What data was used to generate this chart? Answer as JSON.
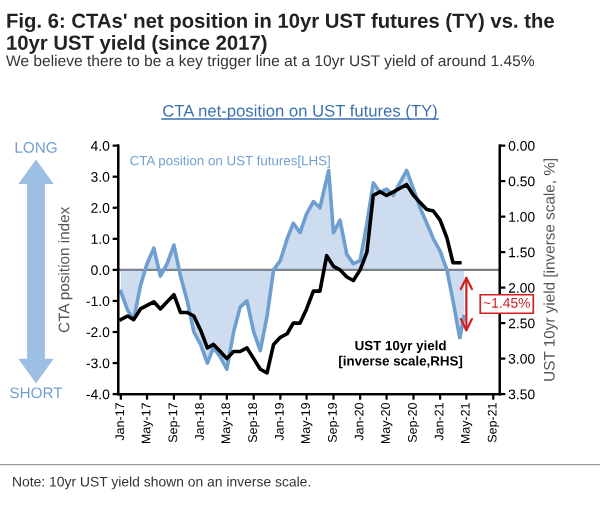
{
  "chart_data": {
    "type": "line",
    "title": "Fig. 6: CTAs' net position in 10yr UST futures (TY) vs. the 10yr UST yield (since 2017)",
    "subtitle": "We believe there to be a key trigger line at a 10yr UST yield of around 1.45%",
    "ylabel": "CTA position index",
    "y2label": "UST 10yr yield [inverse scale, %]",
    "annotations": [
      "CTA net-position on UST futures (TY)",
      "LONG",
      "SHORT",
      "Note: 10yr UST yield shown on an inverse scale.",
      {
        "text": "~1.45%",
        "x": "2021-05-01",
        "y": -2.2
      }
    ],
    "series": [
      {
        "name": "CTA position on UST futures[LHS]",
        "type": "area",
        "color": "#6f9fd0",
        "x": [
          "2017-01",
          "2017-02",
          "2017-03",
          "2017-04",
          "2017-05",
          "2017-06",
          "2017-07",
          "2017-08",
          "2017-09",
          "2017-10",
          "2017-11",
          "2017-12",
          "2018-01",
          "2018-02",
          "2018-03",
          "2018-04",
          "2018-05",
          "2018-06",
          "2018-07",
          "2018-08",
          "2018-09",
          "2018-10",
          "2018-11",
          "2018-12",
          "2019-01",
          "2019-02",
          "2019-03",
          "2019-04",
          "2019-05",
          "2019-06",
          "2019-07",
          "2019-08-10",
          "2019-09",
          "2019-10",
          "2019-11",
          "2019-12",
          "2020-01",
          "2020-02",
          "2020-03",
          "2020-04",
          "2020-05",
          "2020-06",
          "2020-07",
          "2020-08",
          "2020-09",
          "2020-10",
          "2020-11",
          "2020-12",
          "2021-01",
          "2021-02",
          "2021-03",
          "2021-04",
          "2021-04-20"
        ],
        "values": [
          -0.7,
          -1.3,
          -1.6,
          -0.5,
          0.2,
          0.7,
          -0.2,
          0.2,
          0.8,
          -0.2,
          -1.0,
          -2.0,
          -2.4,
          -3.0,
          -2.5,
          -2.8,
          -3.2,
          -2.0,
          -1.2,
          -1.0,
          -2.0,
          -2.6,
          -1.5,
          0.0,
          0.3,
          1.0,
          1.5,
          1.2,
          1.8,
          2.2,
          2.0,
          3.2,
          1.2,
          1.6,
          0.5,
          0.2,
          0.3,
          1.5,
          2.8,
          2.5,
          2.6,
          2.4,
          2.8,
          3.2,
          2.6,
          2.0,
          1.5,
          1.0,
          0.6,
          0.0,
          -1.0,
          -2.2,
          -1.5
        ]
      },
      {
        "name": "UST 10yr yield [inverse scale,RHS]",
        "axis": "y2",
        "color": "#000000",
        "x": [
          "2017-01",
          "2017-02",
          "2017-03",
          "2017-04",
          "2017-05",
          "2017-06",
          "2017-07",
          "2017-08",
          "2017-09",
          "2017-10",
          "2017-11",
          "2017-12",
          "2018-01",
          "2018-02",
          "2018-03",
          "2018-04",
          "2018-05",
          "2018-06",
          "2018-07",
          "2018-08",
          "2018-09",
          "2018-10",
          "2018-11",
          "2018-12",
          "2019-01",
          "2019-02",
          "2019-03",
          "2019-04",
          "2019-05",
          "2019-06",
          "2019-07",
          "2019-08",
          "2019-09",
          "2019-10",
          "2019-11",
          "2019-12",
          "2020-01",
          "2020-02",
          "2020-03",
          "2020-04",
          "2020-05",
          "2020-06",
          "2020-07",
          "2020-08",
          "2020-09",
          "2020-10",
          "2020-11",
          "2020-12",
          "2021-01",
          "2021-02",
          "2021-03",
          "2021-04"
        ],
        "values": [
          2.45,
          2.4,
          2.45,
          2.3,
          2.25,
          2.2,
          2.3,
          2.2,
          2.1,
          2.35,
          2.35,
          2.4,
          2.6,
          2.85,
          2.8,
          2.9,
          3.0,
          2.9,
          2.9,
          2.85,
          3.0,
          3.15,
          3.2,
          2.8,
          2.7,
          2.65,
          2.5,
          2.5,
          2.3,
          2.05,
          2.05,
          1.55,
          1.7,
          1.75,
          1.85,
          1.9,
          1.75,
          1.5,
          0.7,
          0.65,
          0.7,
          0.65,
          0.6,
          0.55,
          0.7,
          0.8,
          0.9,
          0.92,
          1.05,
          1.3,
          1.65,
          1.65
        ]
      }
    ],
    "xlim": [
      "2016-12-20",
      "2021-10-01"
    ],
    "xticks": [
      {
        "value": "2017-01-01",
        "label": "Jan-17"
      },
      {
        "value": "2017-05-01",
        "label": "May-17"
      },
      {
        "value": "2017-09-01",
        "label": "Sep-17"
      },
      {
        "value": "2018-01-01",
        "label": "Jan-18"
      },
      {
        "value": "2018-05-01",
        "label": "May-18"
      },
      {
        "value": "2018-09-01",
        "label": "Sep-18"
      },
      {
        "value": "2019-01-01",
        "label": "Jan-19"
      },
      {
        "value": "2019-05-01",
        "label": "May-19"
      },
      {
        "value": "2019-09-01",
        "label": "Sep-19"
      },
      {
        "value": "2020-01-01",
        "label": "Jan-20"
      },
      {
        "value": "2020-05-01",
        "label": "May-20"
      },
      {
        "value": "2020-09-01",
        "label": "Sep-20"
      },
      {
        "value": "2021-01-01",
        "label": "Jan-21"
      },
      {
        "value": "2021-05-01",
        "label": "May-21"
      },
      {
        "value": "2021-09-01",
        "label": "Sep-21"
      }
    ],
    "ylim": [
      -4.0,
      4.0
    ],
    "yticks": [
      {
        "value": 4,
        "label": "4.0"
      },
      {
        "value": 3,
        "label": "3.0"
      },
      {
        "value": 2,
        "label": "2.0"
      },
      {
        "value": 1,
        "label": "1.0"
      },
      {
        "value": 0,
        "label": "0.0"
      },
      {
        "value": -1,
        "label": "-1.0"
      },
      {
        "value": -2,
        "label": "-2.0"
      },
      {
        "value": -3,
        "label": "-3.0"
      },
      {
        "value": -4,
        "label": "-4.0"
      }
    ],
    "y2lim": [
      3.5,
      0.0
    ],
    "y2ticks": [
      {
        "value": 0,
        "label": "0.00"
      },
      {
        "value": 0.5,
        "label": "0.50"
      },
      {
        "value": 1,
        "label": "1.00"
      },
      {
        "value": 1.5,
        "label": "1.50"
      },
      {
        "value": 2,
        "label": "2.00"
      },
      {
        "value": 2.5,
        "label": "2.50"
      },
      {
        "value": 3,
        "label": "3.00"
      },
      {
        "value": 3.5,
        "label": "3.50"
      }
    ],
    "ref_lines": [
      {
        "axis": "y",
        "value": 0,
        "color": "#808080"
      }
    ],
    "grid": false,
    "legend": false
  }
}
